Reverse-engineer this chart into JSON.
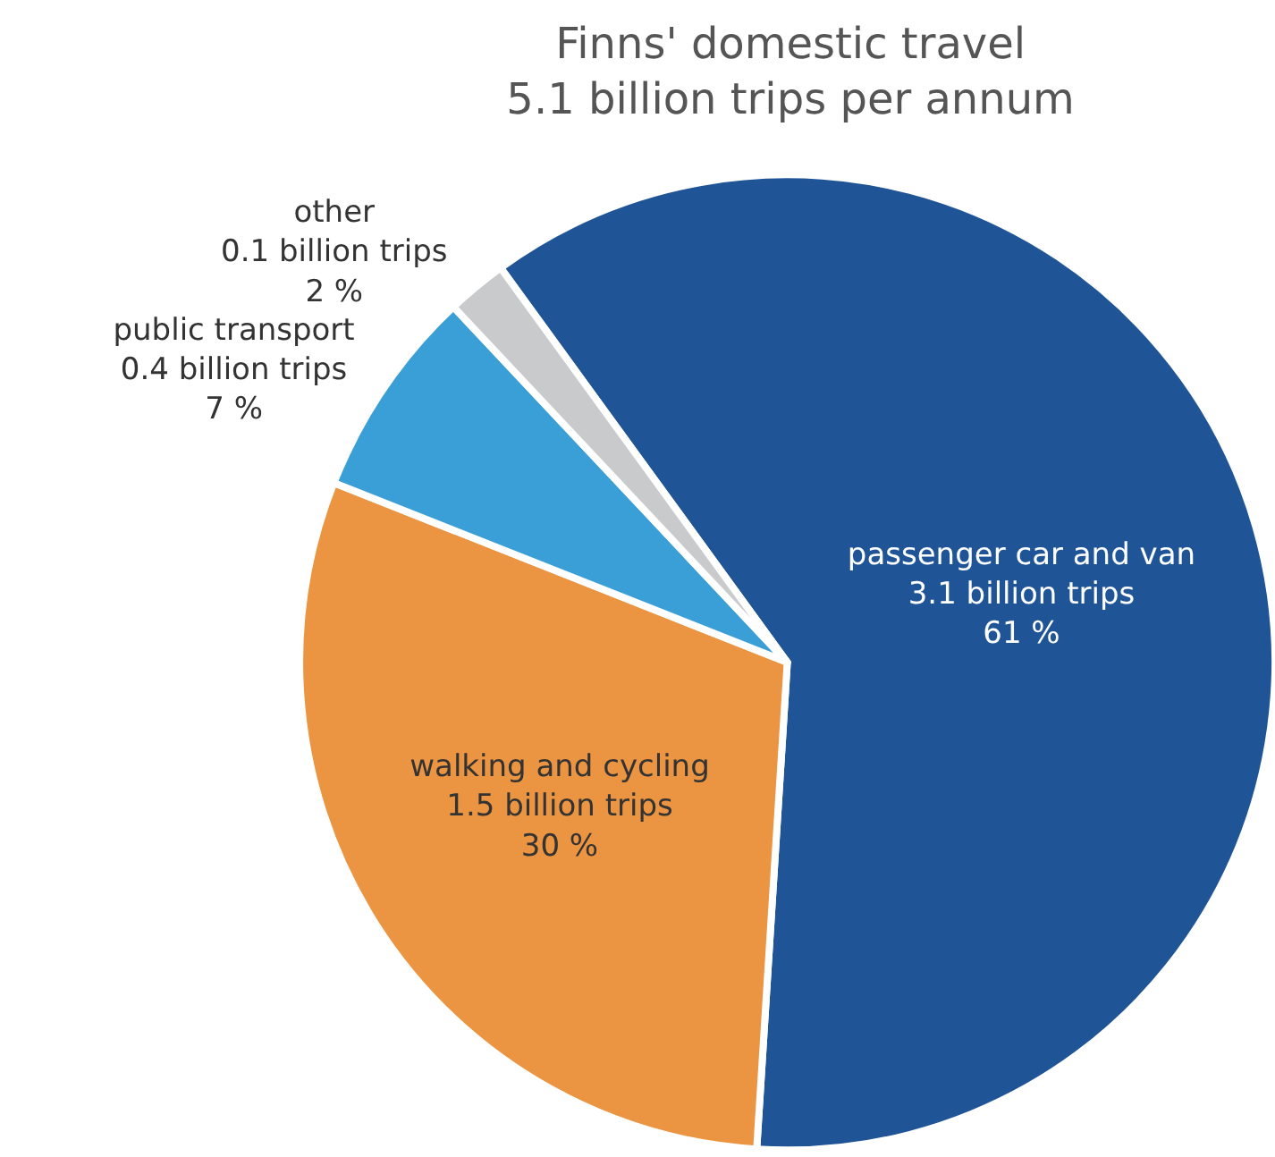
{
  "chart_data": {
    "type": "pie",
    "title": "Finns' domestic travel",
    "subtitle": "5.1 billion trips per annum",
    "categories": [
      "passenger car and van",
      "walking and cycling",
      "public transport",
      "other"
    ],
    "values": [
      61,
      30,
      7,
      2
    ],
    "value_labels": [
      "3.1 billion trips\n61 %",
      "1.5 billion trips\n30 %",
      "0.4 billion trips\n7 %",
      "0.1 billion trips\n2 %"
    ],
    "colors": [
      "#1f5597",
      "#eb9441",
      "#3a9fd6",
      "#c9cacc"
    ],
    "legend": false
  }
}
